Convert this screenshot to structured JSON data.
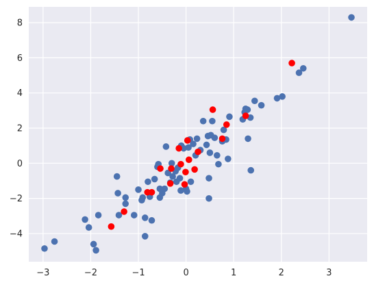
{
  "chart_data": {
    "type": "scatter",
    "title": "",
    "xlabel": "",
    "ylabel": "",
    "xlim": [
      -3.3,
      3.8
    ],
    "ylim": [
      -5.6,
      8.9
    ],
    "x_ticks": [
      -3,
      -2,
      -1,
      0,
      1,
      2,
      3
    ],
    "y_ticks": [
      -4,
      -2,
      0,
      2,
      4,
      6,
      8
    ],
    "grid": true,
    "background": "#eaeaf2",
    "grid_color": "#ffffff",
    "series": [
      {
        "color": "#4c72b0",
        "points": [
          [
            -2.97,
            -4.85
          ],
          [
            -2.76,
            -4.45
          ],
          [
            -2.12,
            -3.2
          ],
          [
            -2.04,
            -3.65
          ],
          [
            -1.94,
            -4.6
          ],
          [
            -1.89,
            -4.95
          ],
          [
            -1.84,
            -2.95
          ],
          [
            -1.45,
            -0.75
          ],
          [
            -1.43,
            -1.7
          ],
          [
            -1.41,
            -2.95
          ],
          [
            -1.27,
            -2.3
          ],
          [
            -1.27,
            -1.95
          ],
          [
            -1.09,
            -2.95
          ],
          [
            -1.0,
            -1.5
          ],
          [
            -0.93,
            -2.1
          ],
          [
            -0.91,
            -1.95
          ],
          [
            -0.86,
            -3.1
          ],
          [
            -0.86,
            -4.15
          ],
          [
            -0.8,
            -1.05
          ],
          [
            -0.76,
            -1.9
          ],
          [
            -0.72,
            -3.25
          ],
          [
            -0.66,
            -0.9
          ],
          [
            -0.6,
            -0.2
          ],
          [
            -0.58,
            -0.05
          ],
          [
            -0.55,
            -1.45
          ],
          [
            -0.55,
            -1.95
          ],
          [
            -0.5,
            -1.7
          ],
          [
            -0.45,
            -1.45
          ],
          [
            -0.42,
            0.95
          ],
          [
            -0.38,
            -0.55
          ],
          [
            -0.33,
            -1.1
          ],
          [
            -0.3,
            0.0
          ],
          [
            -0.28,
            -0.75
          ],
          [
            -0.22,
            -0.45
          ],
          [
            -0.2,
            -1.05
          ],
          [
            -0.17,
            -0.25
          ],
          [
            -0.13,
            -0.85
          ],
          [
            -0.11,
            -1.55
          ],
          [
            -0.1,
            1.0
          ],
          [
            -0.05,
            0.85
          ],
          [
            0.0,
            -1.45
          ],
          [
            0.02,
            -1.6
          ],
          [
            0.05,
            0.9
          ],
          [
            0.08,
            1.35
          ],
          [
            0.1,
            -1.05
          ],
          [
            0.15,
            1.1
          ],
          [
            0.2,
            0.45
          ],
          [
            0.23,
            1.4
          ],
          [
            0.3,
            0.75
          ],
          [
            0.36,
            2.4
          ],
          [
            0.43,
            1.05
          ],
          [
            0.46,
            1.55
          ],
          [
            0.48,
            -0.85
          ],
          [
            0.48,
            -2.0
          ],
          [
            0.5,
            0.6
          ],
          [
            0.52,
            1.6
          ],
          [
            0.55,
            2.4
          ],
          [
            0.6,
            1.45
          ],
          [
            0.65,
            0.45
          ],
          [
            0.68,
            -0.05
          ],
          [
            0.76,
            1.25
          ],
          [
            0.79,
            1.9
          ],
          [
            0.84,
            1.35
          ],
          [
            0.88,
            0.25
          ],
          [
            0.91,
            2.65
          ],
          [
            1.19,
            2.5
          ],
          [
            1.23,
            2.9
          ],
          [
            1.25,
            3.1
          ],
          [
            1.29,
            3.05
          ],
          [
            1.3,
            1.4
          ],
          [
            1.35,
            2.6
          ],
          [
            1.36,
            -0.4
          ],
          [
            1.44,
            3.55
          ],
          [
            1.58,
            3.3
          ],
          [
            1.91,
            3.7
          ],
          [
            2.02,
            3.8
          ],
          [
            2.37,
            5.15
          ],
          [
            2.46,
            5.4
          ],
          [
            3.47,
            8.3
          ]
        ]
      },
      {
        "color": "#ff0000",
        "points": [
          [
            -1.57,
            -3.6
          ],
          [
            -1.3,
            -2.75
          ],
          [
            -0.81,
            -1.65
          ],
          [
            -0.72,
            -1.65
          ],
          [
            -0.54,
            -0.3
          ],
          [
            -0.33,
            -1.15
          ],
          [
            -0.31,
            -0.3
          ],
          [
            -0.15,
            0.85
          ],
          [
            -0.11,
            -0.05
          ],
          [
            -0.03,
            -1.2
          ],
          [
            -0.01,
            -0.5
          ],
          [
            0.03,
            1.3
          ],
          [
            0.06,
            0.2
          ],
          [
            0.18,
            -0.35
          ],
          [
            0.25,
            0.65
          ],
          [
            0.56,
            3.05
          ],
          [
            0.76,
            1.4
          ],
          [
            0.85,
            2.2
          ],
          [
            1.25,
            2.7
          ],
          [
            2.22,
            5.7
          ]
        ]
      }
    ]
  }
}
